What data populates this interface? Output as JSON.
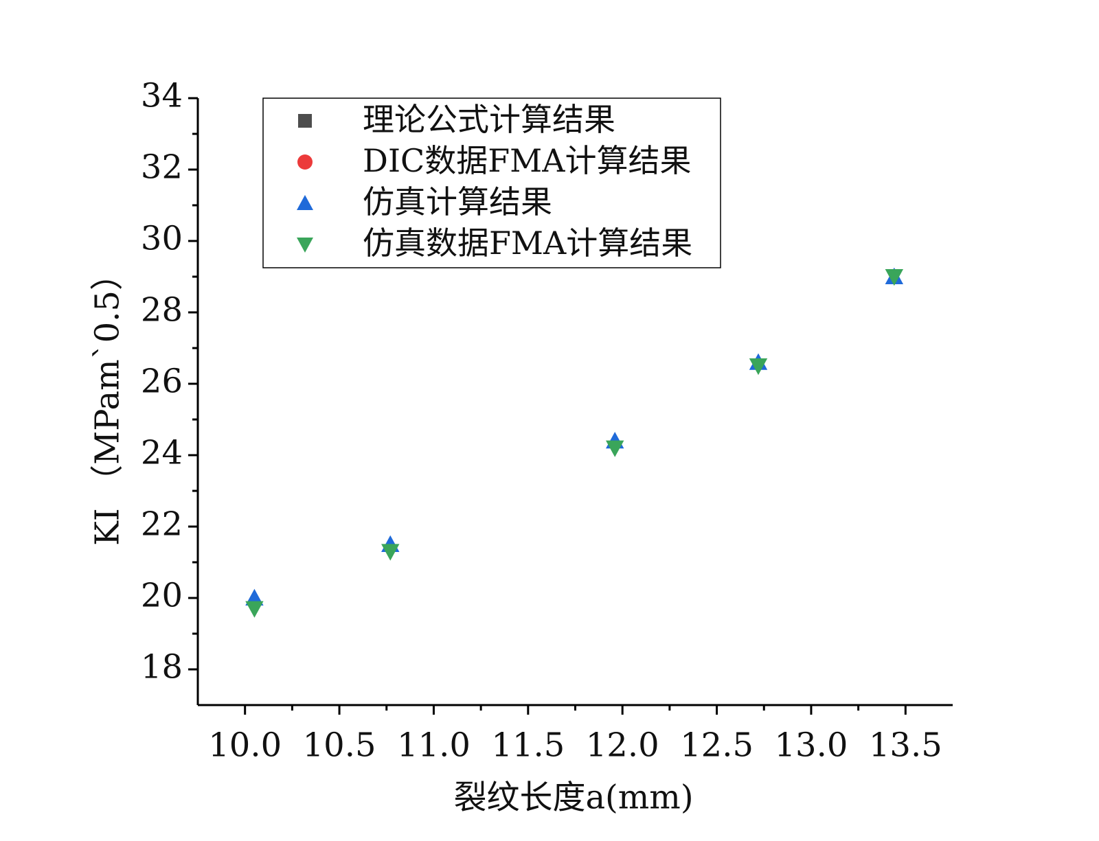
{
  "chart_data": {
    "type": "scatter",
    "x_label": "裂纹长度a(mm)",
    "y_label": "KI （MPam`0.5）",
    "x": [
      10.05,
      10.77,
      11.96,
      12.72,
      13.44
    ],
    "series": [
      {
        "name": "理论公式计算结果",
        "color": "#4d4d4d",
        "marker": "square",
        "values": [
          null,
          null,
          null,
          null,
          null
        ]
      },
      {
        "name": "DIC数据FMA计算结果",
        "color": "#ec3a3a",
        "marker": "circle",
        "values": [
          null,
          null,
          null,
          null,
          null
        ]
      },
      {
        "name": "仿真计算结果",
        "color": "#1f6ad9",
        "marker": "triangle-up",
        "values": [
          20.0,
          21.5,
          24.4,
          26.6,
          29.0
        ]
      },
      {
        "name": "仿真数据FMA计算结果",
        "color": "#3aa55a",
        "marker": "triangle-down",
        "values": [
          19.7,
          21.3,
          24.2,
          26.5,
          29.0
        ]
      }
    ],
    "xlim": [
      9.75,
      13.75
    ],
    "xticks": [
      {
        "value": 10,
        "label": "10.0"
      },
      {
        "value": 10.5,
        "label": "10.5"
      },
      {
        "value": 11,
        "label": "11.0"
      },
      {
        "value": 11.5,
        "label": "11.5"
      },
      {
        "value": 12,
        "label": "12.0"
      },
      {
        "value": 12.5,
        "label": "12.5"
      },
      {
        "value": 13,
        "label": "13.0"
      },
      {
        "value": 13.5,
        "label": "13.5"
      }
    ],
    "ylim": [
      17,
      34
    ],
    "yticks": [
      18,
      20,
      22,
      24,
      26,
      28,
      30,
      32,
      34
    ],
    "legend": "upper left"
  }
}
